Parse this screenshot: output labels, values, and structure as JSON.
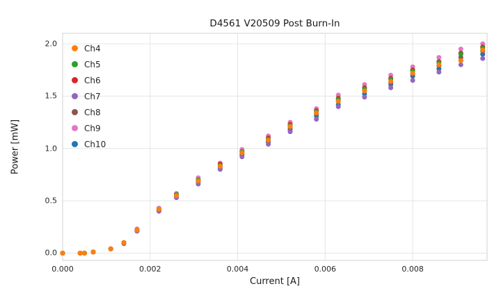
{
  "title": "D4561 V20509 Post Burn-In",
  "chart_data": {
    "type": "scatter",
    "title": "D4561 V20509 Post Burn-In",
    "xlabel": "Current [A]",
    "ylabel": "Power [mW]",
    "xlim": [
      0,
      0.0097
    ],
    "ylim": [
      -0.07,
      2.1
    ],
    "x_ticks": [
      0.0,
      0.002,
      0.004,
      0.006,
      0.008
    ],
    "x_tick_labels": [
      "0.000",
      "0.002",
      "0.004",
      "0.006",
      "0.008"
    ],
    "y_ticks": [
      0.0,
      0.5,
      1.0,
      1.5,
      2.0
    ],
    "y_tick_labels": [
      "0.0",
      "0.5",
      "1.0",
      "1.5",
      "2.0"
    ],
    "grid": true,
    "grid_color": "#e5e5e5",
    "spine_color": "#d9d9d9",
    "legend_position": "upper left",
    "marker_size": 3.5,
    "x": [
      0.0,
      0.0004,
      0.0005,
      0.0007,
      0.0011,
      0.0014,
      0.0017,
      0.0022,
      0.0026,
      0.0031,
      0.0036,
      0.0041,
      0.0047,
      0.0052,
      0.0058,
      0.0063,
      0.0069,
      0.0075,
      0.008,
      0.0086,
      0.0091,
      0.0096
    ],
    "series": [
      {
        "name": "Ch4",
        "color": "#ff7f0e",
        "y": [
          0.0,
          0.0,
          0.0,
          0.01,
          0.04,
          0.1,
          0.22,
          0.42,
          0.55,
          0.69,
          0.83,
          0.96,
          1.08,
          1.21,
          1.34,
          1.45,
          1.55,
          1.64,
          1.72,
          1.8,
          1.84,
          1.94
        ]
      },
      {
        "name": "Ch5",
        "color": "#2ca02c",
        "y": [
          0.0,
          0.0,
          0.0,
          0.01,
          0.04,
          0.1,
          0.22,
          0.42,
          0.56,
          0.7,
          0.84,
          0.97,
          1.09,
          1.22,
          1.35,
          1.47,
          1.57,
          1.66,
          1.74,
          1.82,
          1.9,
          1.96
        ]
      },
      {
        "name": "Ch6",
        "color": "#d62728",
        "y": [
          0.0,
          0.0,
          0.0,
          0.01,
          0.04,
          0.1,
          0.22,
          0.42,
          0.56,
          0.7,
          0.85,
          0.97,
          1.1,
          1.23,
          1.36,
          1.48,
          1.58,
          1.67,
          1.75,
          1.83,
          1.91,
          1.97
        ]
      },
      {
        "name": "Ch7",
        "color": "#9467bd",
        "y": [
          0.0,
          0.0,
          0.0,
          0.01,
          0.04,
          0.09,
          0.21,
          0.4,
          0.53,
          0.66,
          0.8,
          0.92,
          1.04,
          1.16,
          1.28,
          1.4,
          1.49,
          1.58,
          1.65,
          1.73,
          1.8,
          1.86
        ]
      },
      {
        "name": "Ch8",
        "color": "#8c564b",
        "y": [
          0.0,
          0.0,
          0.0,
          0.01,
          0.04,
          0.1,
          0.22,
          0.41,
          0.55,
          0.69,
          0.83,
          0.95,
          1.07,
          1.2,
          1.33,
          1.45,
          1.55,
          1.63,
          1.71,
          1.79,
          1.87,
          1.93
        ]
      },
      {
        "name": "Ch9",
        "color": "#e377c2",
        "y": [
          0.0,
          0.0,
          0.0,
          0.01,
          0.04,
          0.1,
          0.23,
          0.43,
          0.57,
          0.72,
          0.86,
          0.99,
          1.12,
          1.25,
          1.38,
          1.51,
          1.61,
          1.7,
          1.78,
          1.87,
          1.95,
          2.0
        ]
      },
      {
        "name": "Ch10",
        "color": "#1f77b4",
        "y": [
          0.0,
          0.0,
          0.0,
          0.01,
          0.04,
          0.1,
          0.21,
          0.41,
          0.54,
          0.68,
          0.81,
          0.94,
          1.06,
          1.18,
          1.31,
          1.42,
          1.52,
          1.61,
          1.69,
          1.76,
          1.84,
          1.9
        ]
      }
    ]
  }
}
